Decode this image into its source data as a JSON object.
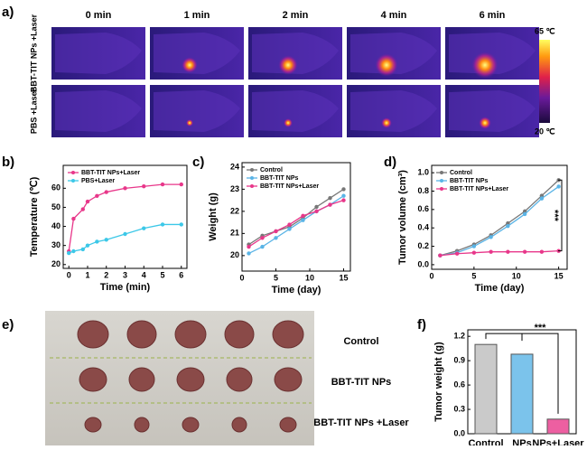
{
  "thermal": {
    "panel": "a)",
    "times": [
      "0 min",
      "1 min",
      "2 min",
      "4 min",
      "6 min"
    ],
    "rows": [
      "BBT-TIT NPs +Laser",
      "PBS +Laser"
    ],
    "colorbar": {
      "max": "65 ℃",
      "min": "20 ℃"
    }
  },
  "photo": {
    "panel": "e)",
    "rows": [
      "Control",
      "BBT-TIT NPs",
      "BBT-TIT NPs +Laser"
    ]
  },
  "chart_data": [
    {
      "type": "line",
      "panel": "b)",
      "xlabel": "Time (min)",
      "ylabel": "Temperature (℃)",
      "x": [
        0,
        0.25,
        0.75,
        1,
        1.5,
        2,
        3,
        4,
        5,
        6
      ],
      "xlim": [
        -0.3,
        6.3
      ],
      "xticks": [
        0,
        1,
        2,
        3,
        4,
        5,
        6
      ],
      "ylim": [
        18,
        72
      ],
      "yticks": [
        20,
        30,
        40,
        50,
        60
      ],
      "series": [
        {
          "name": "BBT-TIT NPs+Laser",
          "color": "#e8378a",
          "values": [
            27,
            44,
            49,
            53,
            56,
            58,
            60,
            61,
            62,
            62
          ]
        },
        {
          "name": "PBS+Laser",
          "color": "#3cc8e8",
          "values": [
            26,
            27,
            28,
            30,
            32,
            33,
            36,
            39,
            41,
            41
          ]
        }
      ]
    },
    {
      "type": "line",
      "panel": "c)",
      "xlabel": "Time (day)",
      "ylabel": "Weight (g)",
      "x": [
        1,
        3,
        5,
        7,
        9,
        11,
        13,
        15
      ],
      "xlim": [
        0,
        16
      ],
      "xticks": [
        0,
        5,
        10,
        15
      ],
      "ylim": [
        19.3,
        24.2
      ],
      "yticks": [
        20,
        21,
        22,
        23,
        24
      ],
      "series": [
        {
          "name": "Control",
          "color": "#777777",
          "values": [
            20.5,
            20.9,
            21.1,
            21.3,
            21.7,
            22.2,
            22.6,
            23.0
          ]
        },
        {
          "name": "BBT-TIT NPs",
          "color": "#5ab4e6",
          "values": [
            20.1,
            20.4,
            20.8,
            21.2,
            21.6,
            22.0,
            22.3,
            22.7
          ]
        },
        {
          "name": "BBT-TIT NPs+Laser",
          "color": "#e8378a",
          "values": [
            20.4,
            20.8,
            21.1,
            21.4,
            21.8,
            22.0,
            22.3,
            22.5
          ]
        }
      ]
    },
    {
      "type": "line",
      "panel": "d)",
      "xlabel": "Time (day)",
      "ylabel": "Tumor volume (cm³)",
      "annotation": "***",
      "x": [
        1,
        3,
        5,
        7,
        9,
        11,
        13,
        15
      ],
      "xlim": [
        0,
        16
      ],
      "xticks": [
        0,
        5,
        10,
        15
      ],
      "ylim": [
        -0.05,
        1.08
      ],
      "yticks": [
        {
          "value": 0,
          "label": "0.0"
        },
        0.2,
        0.4,
        0.6,
        0.8,
        {
          "value": 1,
          "label": "1.0"
        }
      ],
      "series": [
        {
          "name": "Control",
          "color": "#777777",
          "values": [
            0.1,
            0.15,
            0.22,
            0.32,
            0.45,
            0.58,
            0.75,
            0.92
          ]
        },
        {
          "name": "BBT-TIT NPs",
          "color": "#5ab4e6",
          "values": [
            0.1,
            0.13,
            0.2,
            0.3,
            0.42,
            0.55,
            0.72,
            0.85
          ]
        },
        {
          "name": "BBT-TIT NPs+Laser",
          "color": "#e8378a",
          "values": [
            0.1,
            0.12,
            0.13,
            0.14,
            0.14,
            0.14,
            0.14,
            0.15
          ]
        }
      ]
    },
    {
      "type": "bar",
      "panel": "f)",
      "ylabel": "Tumor weight (g)",
      "annotation": "***",
      "categories": [
        "Control",
        "NPs",
        "NPs+Laser"
      ],
      "values": [
        1.1,
        0.98,
        0.18
      ],
      "colors": [
        "#bdbdbd",
        "#5ab4e6",
        "#e8378a"
      ],
      "ylim": [
        0,
        1.28
      ],
      "yticks": [
        {
          "value": 0,
          "label": "0.0"
        },
        0.3,
        0.6,
        0.9,
        1.2
      ]
    }
  ]
}
